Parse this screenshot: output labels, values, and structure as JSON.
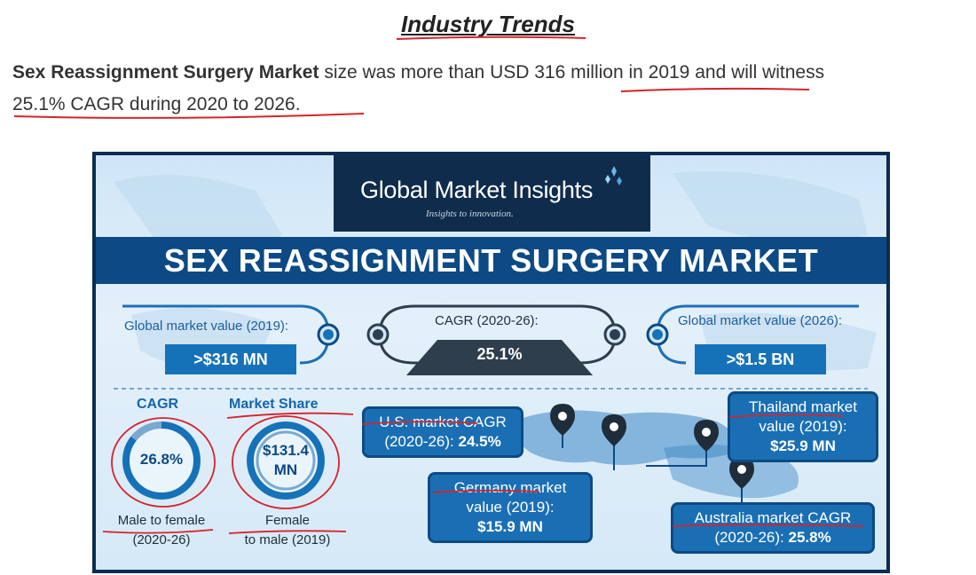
{
  "heading": "Industry Trends",
  "intro": {
    "bold_lead": "Sex Reassignment Surgery Market",
    "text_1": " size was more than USD ",
    "value_2019": "316 million in 2019",
    "text_2": " and will witness ",
    "cagr_text": "25.1% CAGR during 2020 to 2026."
  },
  "infographic": {
    "brand": "Global Market Insights",
    "tagline_a": "Insights to ",
    "tagline_b": "innovation.",
    "title": "SEX REASSIGNMENT SURGERY MARKET",
    "global_2019": {
      "label": "Global market value (2019):",
      "value": ">$316 MN"
    },
    "cagr_center": {
      "label": "CAGR (2020-26):",
      "value": "25.1%"
    },
    "global_2026": {
      "label": "Global market value (2026):",
      "value": ">$1.5 BN"
    },
    "cagr_seg": {
      "heading": "CAGR",
      "value": "26.8%",
      "caption_1": "Male to female",
      "caption_2": "(2020-26)"
    },
    "share_seg": {
      "heading": "Market Share",
      "value_1": "$131.4",
      "value_2": "MN",
      "caption_1": "Female",
      "caption_2": "to male (2019)"
    },
    "us": {
      "line_1": "U.S. market CAGR",
      "line_2": "(2020-26): ",
      "value": "24.5%"
    },
    "germany": {
      "line_1": "Germany market",
      "line_2": "value (2019):",
      "value": "$15.9 MN"
    },
    "thailand": {
      "line_1": "Thailand market",
      "line_2": "value (2019):",
      "value": "$25.9 MN"
    },
    "australia": {
      "line_1": "Australia market CAGR",
      "line_2": "(2020-26): ",
      "value": "25.8%"
    }
  },
  "colors": {
    "navy": "#0d4a85",
    "blue": "#1672b8",
    "ink_red": "#d6232c"
  }
}
